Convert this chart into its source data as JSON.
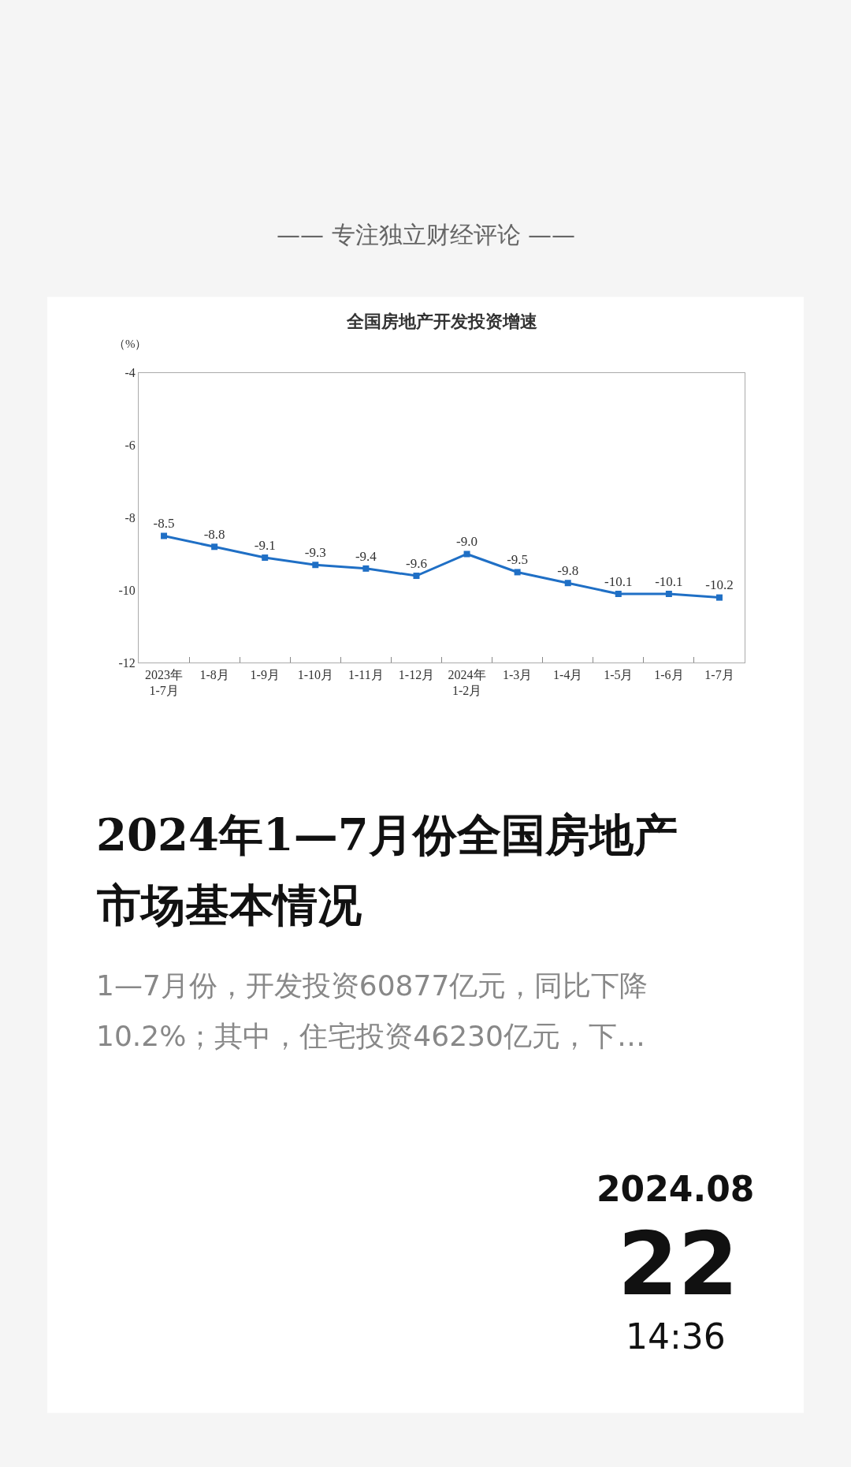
{
  "chart_data": {
    "type": "line",
    "title": "全国房地产开发投资增速",
    "ylabel": "（%）",
    "categories": [
      "2023年\n1-7月",
      "1-8月",
      "1-9月",
      "1-10月",
      "1-11月",
      "1-12月",
      "2024年\n1-2月",
      "1-3月",
      "1-4月",
      "1-5月",
      "1-6月",
      "1-7月"
    ],
    "series": [
      {
        "color": "#1f6fc5",
        "values": [
          -8.5,
          -8.8,
          -9.1,
          -9.3,
          -9.4,
          -9.6,
          -9.0,
          -9.5,
          -9.8,
          -10.1,
          -10.1,
          -10.2
        ]
      }
    ],
    "value_labels": [
      "-8.5",
      "-8.8",
      "-9.1",
      "-9.3",
      "-9.4",
      "-9.6",
      "-9.0",
      "-9.5",
      "-9.8",
      "-10.1",
      "-10.1",
      "-10.2"
    ],
    "ylim": [
      -12,
      -4
    ],
    "yticks": [
      -12,
      -10,
      -8,
      -6,
      -4
    ],
    "legend": false,
    "marker": "square",
    "line_style": "solid",
    "annotations": [
      "—— 专注独立财经评论 ——",
      "2024年1—7月份全国房地产",
      "市场基本情况",
      "1—7月份，开发投资60877亿元，同比下降",
      "10.2%；其中，住宅投资46230亿元，下…",
      "2024.08",
      "22",
      "14:36"
    ]
  }
}
